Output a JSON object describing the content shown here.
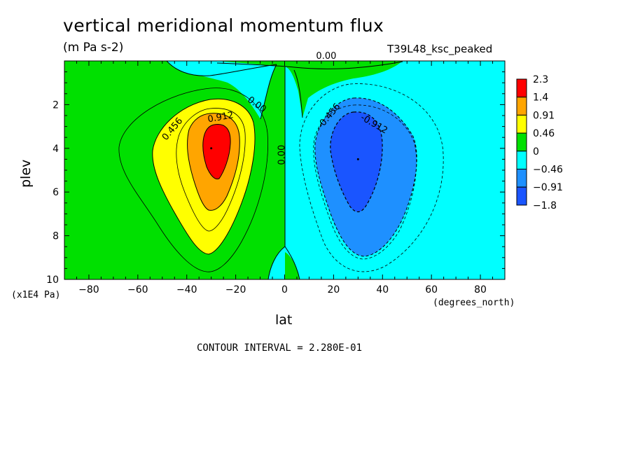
{
  "title": "vertical meridional momentum flux",
  "units_label": "(m Pa s-2)",
  "run_id": "T39L48_ksc_peaked",
  "y_scale_label": "(x1E4 Pa)",
  "x_units_label": "(degrees_north)",
  "footer": "CONTOUR INTERVAL = 2.280E-01",
  "chart_data": {
    "type": "heatmap",
    "xlabel": "lat",
    "ylabel": "plev",
    "xlim": [
      -90,
      90
    ],
    "ylim": [
      0,
      10
    ],
    "y_inverted": true,
    "x_ticks": [
      -80,
      -60,
      -40,
      -20,
      0,
      20,
      40,
      60,
      80
    ],
    "x_tick_labels": [
      "−80",
      "−60",
      "−40",
      "−20",
      "0",
      "20",
      "40",
      "60",
      "80"
    ],
    "y_ticks": [
      2,
      4,
      6,
      8,
      10
    ],
    "y_tick_labels": [
      "2",
      "4",
      "6",
      "8",
      "10"
    ],
    "contour_interval": 0.228,
    "extrema": {
      "max": {
        "lat": -30,
        "plev": 4,
        "approx_value": 2.3
      },
      "min": {
        "lat": 30,
        "plev": 4.5,
        "approx_value": -1.8
      }
    },
    "contour_labels": [
      {
        "text": "0.456",
        "lat": -45,
        "plev": 3.2
      },
      {
        "text": "0.912",
        "lat": -26,
        "plev": 2.7
      },
      {
        "text": "0.00",
        "lat": -12,
        "plev": 2.1
      },
      {
        "text": "0.00",
        "lat": 0,
        "plev": 4.3
      },
      {
        "text": "0.00",
        "lat": 17,
        "plev": -0.1
      },
      {
        "text": "-0.456",
        "lat": 19,
        "plev": 2.6
      },
      {
        "text": "-0.912",
        "lat": 36,
        "plev": 3.0
      }
    ],
    "legend": {
      "position": "right",
      "levels": [
        {
          "label": "2.3",
          "color": "#ff0000"
        },
        {
          "label": "1.4",
          "color": "#ffa500"
        },
        {
          "label": "0.91",
          "color": "#ffff00"
        },
        {
          "label": "0.46",
          "color": "#00e000"
        },
        {
          "label": "0",
          "color": "#00ffff"
        },
        {
          "label": "−0.46",
          "color": "#1e90ff"
        },
        {
          "label": "−0.91",
          "color": "#1a55ff"
        },
        {
          "label": "−1.8",
          "color": ""
        }
      ]
    }
  }
}
